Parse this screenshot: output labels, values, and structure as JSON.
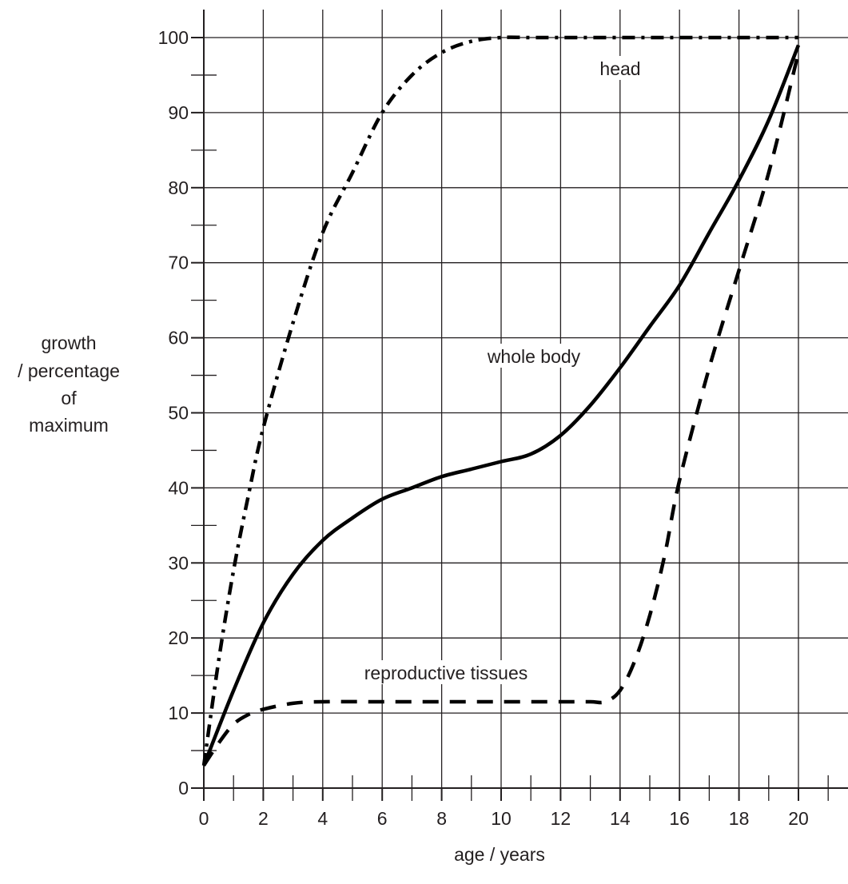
{
  "chart_data": {
    "type": "line",
    "xlabel": "age / years",
    "ylabel": [
      "growth",
      "/ percentage",
      "of",
      "maximum"
    ],
    "xlim": [
      0,
      20
    ],
    "ylim": [
      0,
      100
    ],
    "xticks": [
      "0",
      "2",
      "4",
      "6",
      "8",
      "10",
      "12",
      "14",
      "16",
      "18",
      "20"
    ],
    "yticks": [
      "0",
      "10",
      "20",
      "30",
      "40",
      "50",
      "60",
      "70",
      "80",
      "90",
      "100"
    ],
    "grid": true,
    "series": [
      {
        "name": "head",
        "style": "dash-dot",
        "x": [
          0,
          0.5,
          1,
          1.5,
          2,
          3,
          4,
          5,
          6,
          7,
          8,
          9,
          10,
          11,
          12,
          14,
          16,
          18,
          20
        ],
        "y": [
          3,
          17,
          29,
          39,
          48,
          62,
          74,
          82,
          90,
          95,
          98,
          99.5,
          100,
          100,
          100,
          100,
          100,
          100,
          100
        ]
      },
      {
        "name": "whole body",
        "style": "solid",
        "x": [
          0,
          1,
          2,
          3,
          4,
          5,
          6,
          7,
          8,
          9,
          10,
          11,
          12,
          13,
          14,
          15,
          16,
          17,
          18,
          19,
          20
        ],
        "y": [
          3,
          13,
          22,
          28.5,
          33,
          36,
          38.5,
          40,
          41.5,
          42.5,
          43.5,
          44.5,
          47,
          51,
          56,
          61.5,
          67,
          74,
          81,
          89,
          99
        ]
      },
      {
        "name": "reproductive tissues",
        "style": "dashed",
        "x": [
          0,
          0.5,
          1,
          1.5,
          2,
          3,
          4,
          6,
          8,
          10,
          12,
          13,
          13.5,
          14,
          14.5,
          15,
          15.5,
          16,
          17,
          18,
          19,
          20
        ],
        "y": [
          3,
          6,
          8.5,
          9.8,
          10.5,
          11.3,
          11.5,
          11.5,
          11.5,
          11.5,
          11.5,
          11.5,
          11.5,
          13,
          17,
          23,
          31,
          41,
          56,
          69,
          82,
          98
        ]
      }
    ],
    "annotations": [
      "head",
      "whole body",
      "reproductive tissues"
    ]
  }
}
